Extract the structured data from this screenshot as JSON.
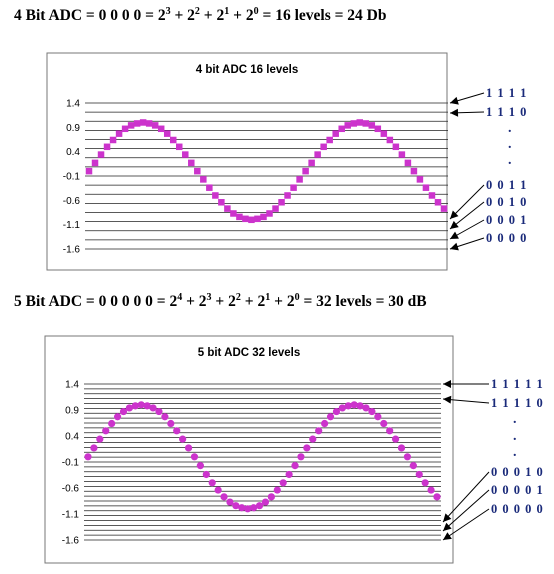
{
  "headings": {
    "top": {
      "lead": "4 Bit ADC  =   0 0 0 0 = 2",
      "parts": [
        {
          "sup": "3",
          "txt": " + 2"
        },
        {
          "sup": "2",
          "txt": " + 2"
        },
        {
          "sup": "1",
          "txt": " + 2"
        },
        {
          "sup": "0",
          "txt": " = 16 levels = 24  Db"
        }
      ]
    },
    "bottom": {
      "lead": "5 Bit ADC  =   0 0 0 0 0  =  2",
      "parts": [
        {
          "sup": "4",
          "txt": " + 2"
        },
        {
          "sup": "3",
          "txt": " + 2"
        },
        {
          "sup": "2",
          "txt": " + 2"
        },
        {
          "sup": "1",
          "txt": " + 2"
        },
        {
          "sup": "0",
          "txt": " = 32 levels = 30 dB"
        }
      ]
    }
  },
  "chart_data": [
    {
      "type": "scatter",
      "title": "4 bit ADC  16 levels",
      "yticks": [
        "1.4",
        "0.9",
        "0.4",
        "-0.1",
        "-0.6",
        "-1.1",
        "-1.6"
      ],
      "ylim": [
        -1.6,
        1.4
      ],
      "levels": 16,
      "series": [
        {
          "x": [
            0,
            1,
            2,
            3,
            4,
            5,
            6,
            7,
            8,
            9,
            10,
            11,
            12,
            13,
            14,
            15,
            16,
            17,
            18,
            19,
            20,
            21,
            22,
            23,
            24,
            25,
            26,
            27,
            28,
            29,
            30,
            31,
            32,
            33,
            34,
            35,
            36,
            37,
            38,
            39,
            40,
            41,
            42,
            43,
            44,
            45,
            46,
            47,
            48,
            49,
            50,
            51,
            52,
            53,
            54,
            55,
            56,
            57,
            58,
            59
          ],
          "y": [
            0,
            0.17,
            0.34,
            0.5,
            0.64,
            0.77,
            0.87,
            0.94,
            0.98,
            1,
            0.98,
            0.94,
            0.87,
            0.77,
            0.64,
            0.5,
            0.34,
            0.17,
            0,
            -0.17,
            -0.34,
            -0.5,
            -0.64,
            -0.77,
            -0.87,
            -0.94,
            -0.98,
            -1,
            -0.98,
            -0.94,
            -0.87,
            -0.77,
            -0.64,
            -0.5,
            -0.34,
            -0.17,
            0,
            0.17,
            0.34,
            0.5,
            0.64,
            0.77,
            0.87,
            0.94,
            0.98,
            1,
            0.98,
            0.94,
            0.87,
            0.77,
            0.64,
            0.5,
            0.34,
            0.17,
            0,
            -0.17,
            -0.34,
            -0.5,
            -0.64,
            -0.77
          ]
        }
      ],
      "codes_top": [
        "1 1 1 1",
        "1 1 1 0"
      ],
      "codes_bottom": [
        "0 0 1 1",
        "0 0 1 0",
        "0 0 0 1",
        "0 0 0 0"
      ],
      "ellipsis": "."
    },
    {
      "type": "scatter",
      "title": "5 bit ADC  32 levels",
      "yticks": [
        "1.4",
        "0.9",
        "0.4",
        "-0.1",
        "-0.6",
        "-1.1",
        "-1.6"
      ],
      "ylim": [
        -1.6,
        1.4
      ],
      "levels": 32,
      "series": [
        {
          "x": [
            0,
            1,
            2,
            3,
            4,
            5,
            6,
            7,
            8,
            9,
            10,
            11,
            12,
            13,
            14,
            15,
            16,
            17,
            18,
            19,
            20,
            21,
            22,
            23,
            24,
            25,
            26,
            27,
            28,
            29,
            30,
            31,
            32,
            33,
            34,
            35,
            36,
            37,
            38,
            39,
            40,
            41,
            42,
            43,
            44,
            45,
            46,
            47,
            48,
            49,
            50,
            51,
            52,
            53,
            54,
            55,
            56,
            57,
            58,
            59
          ],
          "y": [
            0,
            0.17,
            0.34,
            0.5,
            0.64,
            0.77,
            0.87,
            0.94,
            0.98,
            1,
            0.98,
            0.94,
            0.87,
            0.77,
            0.64,
            0.5,
            0.34,
            0.17,
            0,
            -0.17,
            -0.34,
            -0.5,
            -0.64,
            -0.77,
            -0.87,
            -0.94,
            -0.98,
            -1,
            -0.98,
            -0.94,
            -0.87,
            -0.77,
            -0.64,
            -0.5,
            -0.34,
            -0.17,
            0,
            0.17,
            0.34,
            0.5,
            0.64,
            0.77,
            0.87,
            0.94,
            0.98,
            1,
            0.98,
            0.94,
            0.87,
            0.77,
            0.64,
            0.5,
            0.34,
            0.17,
            0,
            -0.17,
            -0.34,
            -0.5,
            -0.64,
            -0.77
          ]
        }
      ],
      "codes_top": [
        "1 1 1 1 1",
        "1 1 1 1 0"
      ],
      "codes_bottom": [
        "0 0 0 1 0",
        "0 0 0 0 1",
        "0 0 0 0 0"
      ],
      "ellipsis": "."
    }
  ],
  "colors": {
    "marker": "#cc33cc",
    "gridline": "#222222",
    "frame": "#777777",
    "code": "#1a2a7a"
  }
}
